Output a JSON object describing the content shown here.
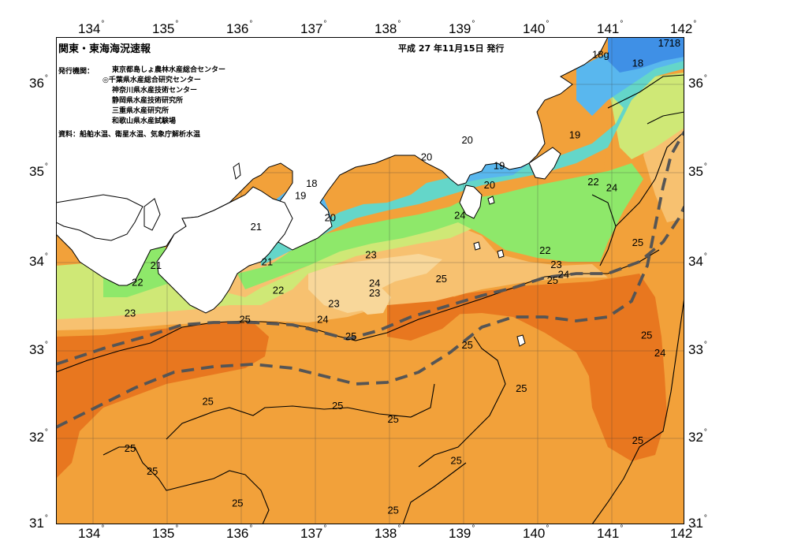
{
  "map": {
    "title": "関東・東海海況速報",
    "issue_date": "平成 27 年11月15日 発行",
    "issuer_label": "発行機関：",
    "issuers": [
      "東京都島しょ農林水産総合センター",
      "◎千葉県水産総合研究センター",
      "神奈川県水産技術センター",
      "静岡県水産技術研究所",
      "三重県水産研究所",
      "和歌山県水産試験場"
    ],
    "source": "資料：船舶水温、衛星水温、気象庁解析水温",
    "longitude_labels": [
      "134",
      "135",
      "136",
      "137",
      "138",
      "139",
      "140",
      "141",
      "142"
    ],
    "latitude_labels": [
      "31",
      "32",
      "33",
      "34",
      "35",
      "36"
    ],
    "degree_symbol": "°",
    "isotherm_labels": [
      {
        "text": "17",
        "lon": 141.7,
        "lat": 36.46
      },
      {
        "text": "18",
        "lon": 141.85,
        "lat": 36.46
      },
      {
        "text": "18g",
        "lon": 140.85,
        "lat": 36.33
      },
      {
        "text": "18",
        "lon": 141.35,
        "lat": 36.23
      },
      {
        "text": "19",
        "lon": 140.5,
        "lat": 35.42
      },
      {
        "text": "20",
        "lon": 139.05,
        "lat": 35.36
      },
      {
        "text": "20",
        "lon": 138.5,
        "lat": 35.17
      },
      {
        "text": "19",
        "lon": 139.48,
        "lat": 35.07
      },
      {
        "text": "18",
        "lon": 136.95,
        "lat": 34.87
      },
      {
        "text": "19",
        "lon": 136.8,
        "lat": 34.73
      },
      {
        "text": "20",
        "lon": 139.35,
        "lat": 34.85
      },
      {
        "text": "22",
        "lon": 140.75,
        "lat": 34.89
      },
      {
        "text": "24",
        "lon": 141.0,
        "lat": 34.82
      },
      {
        "text": "20",
        "lon": 137.2,
        "lat": 34.48
      },
      {
        "text": "24",
        "lon": 138.95,
        "lat": 34.51
      },
      {
        "text": "21",
        "lon": 136.2,
        "lat": 34.38
      },
      {
        "text": "25",
        "lon": 141.35,
        "lat": 34.2
      },
      {
        "text": "22",
        "lon": 140.1,
        "lat": 34.11
      },
      {
        "text": "23",
        "lon": 137.75,
        "lat": 34.06
      },
      {
        "text": "21",
        "lon": 136.35,
        "lat": 33.98
      },
      {
        "text": "23",
        "lon": 140.25,
        "lat": 33.95
      },
      {
        "text": "21",
        "lon": 134.85,
        "lat": 33.94
      },
      {
        "text": "24",
        "lon": 140.35,
        "lat": 33.84
      },
      {
        "text": "25",
        "lon": 140.2,
        "lat": 33.77
      },
      {
        "text": "25",
        "lon": 138.7,
        "lat": 33.79
      },
      {
        "text": "22",
        "lon": 134.6,
        "lat": 33.75
      },
      {
        "text": "24",
        "lon": 137.8,
        "lat": 33.74
      },
      {
        "text": "23",
        "lon": 137.8,
        "lat": 33.63
      },
      {
        "text": "22",
        "lon": 136.5,
        "lat": 33.66
      },
      {
        "text": "23",
        "lon": 137.25,
        "lat": 33.51
      },
      {
        "text": "23",
        "lon": 134.5,
        "lat": 33.4
      },
      {
        "text": "24",
        "lon": 137.1,
        "lat": 33.33
      },
      {
        "text": "25",
        "lon": 136.05,
        "lat": 33.33
      },
      {
        "text": "25",
        "lon": 137.48,
        "lat": 33.14
      },
      {
        "text": "25",
        "lon": 139.05,
        "lat": 33.04
      },
      {
        "text": "25",
        "lon": 141.47,
        "lat": 33.15
      },
      {
        "text": "24",
        "lon": 141.65,
        "lat": 32.95
      },
      {
        "text": "25",
        "lon": 139.78,
        "lat": 32.55
      },
      {
        "text": "25",
        "lon": 135.55,
        "lat": 32.4
      },
      {
        "text": "25",
        "lon": 137.3,
        "lat": 32.35
      },
      {
        "text": "25",
        "lon": 138.05,
        "lat": 32.2
      },
      {
        "text": "25",
        "lon": 141.35,
        "lat": 31.96
      },
      {
        "text": "25",
        "lon": 134.5,
        "lat": 31.87
      },
      {
        "text": "25",
        "lon": 138.9,
        "lat": 31.73
      },
      {
        "text": "25",
        "lon": 134.8,
        "lat": 31.61
      },
      {
        "text": "25",
        "lon": 135.95,
        "lat": 31.25
      },
      {
        "text": "25",
        "lon": 138.05,
        "lat": 31.17
      }
    ],
    "colors": {
      "sst_25_plus": "#e8771f",
      "sst_24_25": "#f2a13a",
      "sst_23_24": "#f7c170",
      "sst_22_23": "#f8d79a",
      "sst_21_22": "#cfe876",
      "sst_20_21": "#8ee86a",
      "sst_19_20": "#64d6c9",
      "sst_18_19": "#59b7ee",
      "sst_17_18": "#3f90e6",
      "land": "#ffffff",
      "kuroshio_axis": "#555555"
    }
  }
}
